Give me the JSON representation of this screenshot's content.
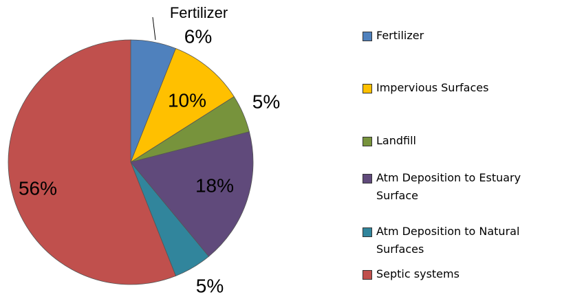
{
  "chart_data": {
    "type": "pie",
    "categories": [
      "Fertilizer",
      "Impervious Surfaces",
      "Landfill",
      "Atm Deposition to Estuary Surface",
      "Atm Deposition to Natural Surfaces",
      "Septic systems"
    ],
    "values": [
      6,
      10,
      5,
      18,
      5,
      56
    ],
    "value_labels": [
      "6%",
      "10%",
      "5%",
      "18%",
      "5%",
      "56%"
    ],
    "colors": [
      "#4f81bd",
      "#ffc000",
      "#77933c",
      "#604a7b",
      "#31859c",
      "#c0504d"
    ],
    "legend": "right"
  }
}
